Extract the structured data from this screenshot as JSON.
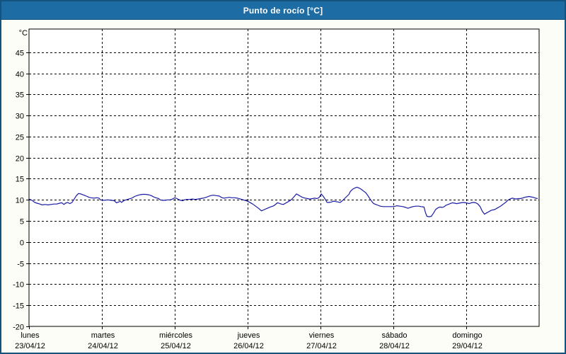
{
  "window": {
    "title": "Punto de rocío [°C]",
    "title_bar_color": "#1d6ca3",
    "title_text_color": "#ffffff",
    "frame_border_color": "#15537f",
    "background_color": "#fcfdf6"
  },
  "chart_data": {
    "type": "line",
    "title": "Punto de rocío [°C]",
    "ylabel": "°C",
    "xlabel": "",
    "ylim": [
      -20,
      50.5
    ],
    "y_ticks": [
      45,
      40,
      35,
      30,
      25,
      20,
      15,
      10,
      5,
      0,
      -5,
      -10,
      -15,
      -20
    ],
    "grid": "dashed-black",
    "legend_position": "none",
    "plot_background": "#ffffff",
    "x_range_days": [
      0,
      7
    ],
    "x_days": [
      {
        "name": "lunes",
        "date": "23/04/12"
      },
      {
        "name": "martes",
        "date": "24/04/12"
      },
      {
        "name": "miércoles",
        "date": "25/04/12"
      },
      {
        "name": "jueves",
        "date": "26/04/12"
      },
      {
        "name": "viernes",
        "date": "27/04/12"
      },
      {
        "name": "sábado",
        "date": "28/04/12"
      },
      {
        "name": "domingo",
        "date": "29/04/12"
      }
    ],
    "series": [
      {
        "name": "Punto de rocío",
        "color": "#1a1aa6",
        "points": [
          [
            0.0,
            10.2
          ],
          [
            0.04,
            9.9
          ],
          [
            0.08,
            9.4
          ],
          [
            0.11,
            9.2
          ],
          [
            0.15,
            9.0
          ],
          [
            0.18,
            8.8
          ],
          [
            0.22,
            8.9
          ],
          [
            0.26,
            8.8
          ],
          [
            0.3,
            8.9
          ],
          [
            0.34,
            9.0
          ],
          [
            0.38,
            9.0
          ],
          [
            0.42,
            9.2
          ],
          [
            0.45,
            9.3
          ],
          [
            0.48,
            8.9
          ],
          [
            0.5,
            9.2
          ],
          [
            0.53,
            9.4
          ],
          [
            0.56,
            9.1
          ],
          [
            0.59,
            9.4
          ],
          [
            0.62,
            10.2
          ],
          [
            0.65,
            11.0
          ],
          [
            0.68,
            11.5
          ],
          [
            0.71,
            11.4
          ],
          [
            0.74,
            11.2
          ],
          [
            0.77,
            11.0
          ],
          [
            0.8,
            10.8
          ],
          [
            0.82,
            10.6
          ],
          [
            0.85,
            10.5
          ],
          [
            0.89,
            10.4
          ],
          [
            0.93,
            10.5
          ],
          [
            0.96,
            10.4
          ],
          [
            0.98,
            10.0
          ],
          [
            1.03,
            9.9
          ],
          [
            1.08,
            10.0
          ],
          [
            1.13,
            9.9
          ],
          [
            1.17,
            9.8
          ],
          [
            1.2,
            9.3
          ],
          [
            1.23,
            9.5
          ],
          [
            1.25,
            9.7
          ],
          [
            1.27,
            9.4
          ],
          [
            1.3,
            9.8
          ],
          [
            1.33,
            10.0
          ],
          [
            1.37,
            10.2
          ],
          [
            1.41,
            10.4
          ],
          [
            1.45,
            10.8
          ],
          [
            1.48,
            11.0
          ],
          [
            1.52,
            11.2
          ],
          [
            1.56,
            11.3
          ],
          [
            1.6,
            11.3
          ],
          [
            1.64,
            11.2
          ],
          [
            1.68,
            11.0
          ],
          [
            1.71,
            10.7
          ],
          [
            1.74,
            10.5
          ],
          [
            1.78,
            10.3
          ],
          [
            1.8,
            10.0
          ],
          [
            1.83,
            9.9
          ],
          [
            1.87,
            9.9
          ],
          [
            1.9,
            10.0
          ],
          [
            1.94,
            10.0
          ],
          [
            1.97,
            10.2
          ],
          [
            2.0,
            10.5
          ],
          [
            2.03,
            10.3
          ],
          [
            2.05,
            10.1
          ],
          [
            2.08,
            9.9
          ],
          [
            2.11,
            9.8
          ],
          [
            2.13,
            10.0
          ],
          [
            2.16,
            10.1
          ],
          [
            2.2,
            10.1
          ],
          [
            2.24,
            10.2
          ],
          [
            2.28,
            10.1
          ],
          [
            2.32,
            10.2
          ],
          [
            2.35,
            10.3
          ],
          [
            2.39,
            10.4
          ],
          [
            2.43,
            10.6
          ],
          [
            2.46,
            10.8
          ],
          [
            2.49,
            11.0
          ],
          [
            2.53,
            11.1
          ],
          [
            2.57,
            11.0
          ],
          [
            2.61,
            10.9
          ],
          [
            2.65,
            10.5
          ],
          [
            2.68,
            10.4
          ],
          [
            2.71,
            10.5
          ],
          [
            2.75,
            10.6
          ],
          [
            2.78,
            10.5
          ],
          [
            2.82,
            10.5
          ],
          [
            2.86,
            10.4
          ],
          [
            2.9,
            10.2
          ],
          [
            2.94,
            10.0
          ],
          [
            2.98,
            9.8
          ],
          [
            3.02,
            9.5
          ],
          [
            3.07,
            9.0
          ],
          [
            3.11,
            8.5
          ],
          [
            3.15,
            8.0
          ],
          [
            3.19,
            7.4
          ],
          [
            3.23,
            7.7
          ],
          [
            3.27,
            8.0
          ],
          [
            3.31,
            8.3
          ],
          [
            3.36,
            8.6
          ],
          [
            3.41,
            9.3
          ],
          [
            3.43,
            9.2
          ],
          [
            3.46,
            9.0
          ],
          [
            3.49,
            8.9
          ],
          [
            3.52,
            9.2
          ],
          [
            3.55,
            9.5
          ],
          [
            3.58,
            9.8
          ],
          [
            3.61,
            10.2
          ],
          [
            3.64,
            10.8
          ],
          [
            3.67,
            11.4
          ],
          [
            3.7,
            11.1
          ],
          [
            3.73,
            10.8
          ],
          [
            3.75,
            10.6
          ],
          [
            3.79,
            10.4
          ],
          [
            3.82,
            10.3
          ],
          [
            3.85,
            10.2
          ],
          [
            3.89,
            10.3
          ],
          [
            3.92,
            10.4
          ],
          [
            3.95,
            10.3
          ],
          [
            3.98,
            10.5
          ],
          [
            4.01,
            11.4
          ],
          [
            4.04,
            10.8
          ],
          [
            4.07,
            10.0
          ],
          [
            4.09,
            9.4
          ],
          [
            4.12,
            9.4
          ],
          [
            4.15,
            9.5
          ],
          [
            4.18,
            9.7
          ],
          [
            4.21,
            9.6
          ],
          [
            4.24,
            9.5
          ],
          [
            4.27,
            9.4
          ],
          [
            4.3,
            9.8
          ],
          [
            4.33,
            10.3
          ],
          [
            4.36,
            10.8
          ],
          [
            4.39,
            11.3
          ],
          [
            4.41,
            12.0
          ],
          [
            4.44,
            12.5
          ],
          [
            4.47,
            12.8
          ],
          [
            4.5,
            13.0
          ],
          [
            4.53,
            12.8
          ],
          [
            4.56,
            12.5
          ],
          [
            4.59,
            12.1
          ],
          [
            4.62,
            11.7
          ],
          [
            4.65,
            11.0
          ],
          [
            4.68,
            10.2
          ],
          [
            4.71,
            9.5
          ],
          [
            4.73,
            9.1
          ],
          [
            4.76,
            8.9
          ],
          [
            4.79,
            8.7
          ],
          [
            4.82,
            8.5
          ],
          [
            4.86,
            8.4
          ],
          [
            4.9,
            8.4
          ],
          [
            4.94,
            8.4
          ],
          [
            4.99,
            8.4
          ],
          [
            5.03,
            8.5
          ],
          [
            5.05,
            8.6
          ],
          [
            5.09,
            8.5
          ],
          [
            5.13,
            8.4
          ],
          [
            5.17,
            8.2
          ],
          [
            5.2,
            8.0
          ],
          [
            5.23,
            8.2
          ],
          [
            5.27,
            8.4
          ],
          [
            5.31,
            8.5
          ],
          [
            5.35,
            8.5
          ],
          [
            5.38,
            8.4
          ],
          [
            5.42,
            8.3
          ],
          [
            5.44,
            7.0
          ],
          [
            5.46,
            6.1
          ],
          [
            5.49,
            6.0
          ],
          [
            5.52,
            6.1
          ],
          [
            5.55,
            6.8
          ],
          [
            5.58,
            7.7
          ],
          [
            5.61,
            8.1
          ],
          [
            5.64,
            8.3
          ],
          [
            5.67,
            8.2
          ],
          [
            5.7,
            8.4
          ],
          [
            5.72,
            8.7
          ],
          [
            5.75,
            8.9
          ],
          [
            5.78,
            9.1
          ],
          [
            5.81,
            9.3
          ],
          [
            5.84,
            9.2
          ],
          [
            5.87,
            9.1
          ],
          [
            5.9,
            9.2
          ],
          [
            5.93,
            9.3
          ],
          [
            5.96,
            9.4
          ],
          [
            5.99,
            9.3
          ],
          [
            6.02,
            9.2
          ],
          [
            6.04,
            9.1
          ],
          [
            6.07,
            9.3
          ],
          [
            6.1,
            9.4
          ],
          [
            6.13,
            9.3
          ],
          [
            6.16,
            9.0
          ],
          [
            6.19,
            8.4
          ],
          [
            6.22,
            7.3
          ],
          [
            6.25,
            6.6
          ],
          [
            6.28,
            6.9
          ],
          [
            6.31,
            7.2
          ],
          [
            6.34,
            7.5
          ],
          [
            6.36,
            7.6
          ],
          [
            6.39,
            7.7
          ],
          [
            6.42,
            8.0
          ],
          [
            6.45,
            8.3
          ],
          [
            6.48,
            8.6
          ],
          [
            6.51,
            9.0
          ],
          [
            6.54,
            9.4
          ],
          [
            6.57,
            9.9
          ],
          [
            6.6,
            10.2
          ],
          [
            6.63,
            10.4
          ],
          [
            6.66,
            10.3
          ],
          [
            6.68,
            10.2
          ],
          [
            6.71,
            10.3
          ],
          [
            6.74,
            10.3
          ],
          [
            6.77,
            10.4
          ],
          [
            6.8,
            10.6
          ],
          [
            6.83,
            10.7
          ],
          [
            6.86,
            10.8
          ],
          [
            6.89,
            10.7
          ],
          [
            6.92,
            10.6
          ],
          [
            6.95,
            10.4
          ],
          [
            6.98,
            10.3
          ]
        ]
      }
    ]
  }
}
